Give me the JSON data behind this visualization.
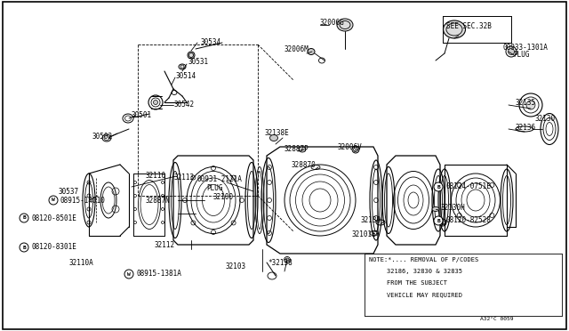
{
  "bg_color": "#ffffff",
  "line_color": "#000000",
  "text_color": "#000000",
  "fig_width": 6.4,
  "fig_height": 3.72,
  "dpi": 100,
  "border": [
    0.005,
    0.005,
    0.99,
    0.99
  ],
  "note_lines": [
    "NOTE:*.... REMOVAL OF P/CODES",
    "       32186, 32830 & 32835",
    "       FROM THE SUBJECT",
    "       VEHICLE MAY REQUIRED"
  ],
  "ref_code": "A32°C 0059",
  "see_sec": "SEE SEC.32B"
}
